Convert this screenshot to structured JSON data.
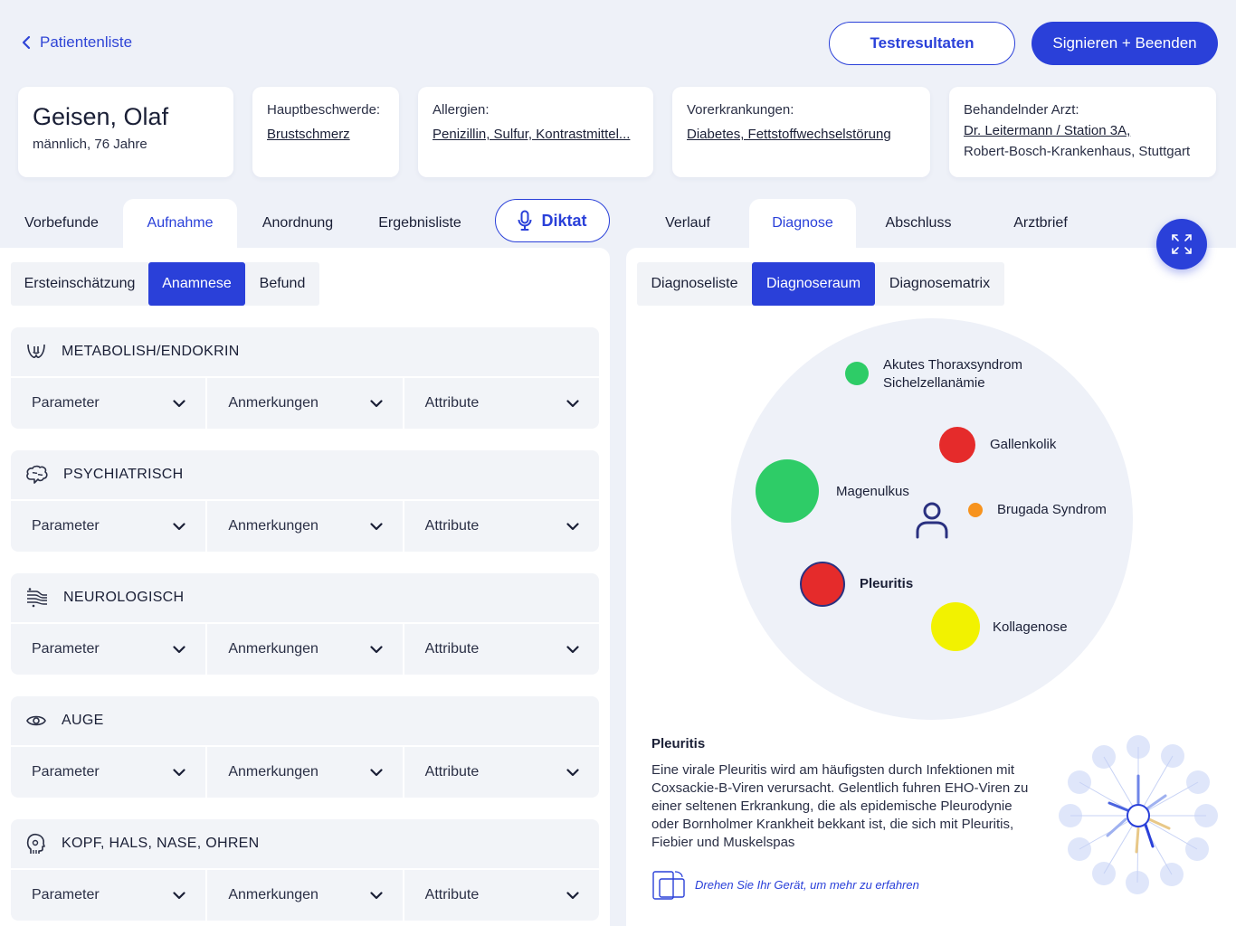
{
  "topbar": {
    "back_label": "Patientenliste",
    "test_results_label": "Testresultaten",
    "sign_label": "Signieren + Beenden"
  },
  "patient": {
    "name": "Geisen, Olaf",
    "info": "männlich, 76 Jahre"
  },
  "cards": {
    "complaint_label": "Hauptbeschwerde:",
    "complaint_value": "Brustschmerz",
    "allergies_label": "Allergien:",
    "allergies_value": "Penizillin, Sulfur, Kontrastmittel...",
    "history_label": "Vorerkrankungen:",
    "history_value": "Diabetes, Fettstoffwechselstörung",
    "doctor_label": "Behandelnder Arzt:",
    "doctor_value": "Dr. Leitermann / Station 3A,",
    "hospital": "Robert-Bosch-Krankenhaus, Stuttgart"
  },
  "tabs_left": [
    "Vorbefunde",
    "Aufnahme",
    "Anordnung",
    "Ergebnisliste"
  ],
  "diktat_label": "Diktat",
  "tabs_right": [
    "Verlauf",
    "Diagnose",
    "Abschluss",
    "Arztbrief"
  ],
  "subtabs_left": [
    "Ersteinschätzung",
    "Anamnese",
    "Befund"
  ],
  "subtabs_right": [
    "Diagnoseliste",
    "Diagnoseraum",
    "Diagnosematrix"
  ],
  "sections": [
    {
      "title": "METABOLISH/ENDOKRIN",
      "icon": "thyroid-icon"
    },
    {
      "title": "PSYCHIATRISCH",
      "icon": "brain-icon"
    },
    {
      "title": "NEUROLOGISCH",
      "icon": "nerves-icon"
    },
    {
      "title": "AUGE",
      "icon": "eye-icon"
    },
    {
      "title": "KOPF, HALS, NASE, OHREN",
      "icon": "head-icon"
    }
  ],
  "field_labels": {
    "parameter": "Parameter",
    "notes": "Anmerkungen",
    "attribute": "Attribute"
  },
  "diagnoses": {
    "thorax": "Akutes Thoraxsyndrom",
    "thorax2": "Sichelzellanämie",
    "gallen": "Gallenkolik",
    "magen": "Magenulkus",
    "brugada": "Brugada Syndrom",
    "pleuritis": "Pleuritis",
    "kollagen": "Kollagenose"
  },
  "detail": {
    "title": "Pleuritis",
    "text": "Eine virale Pleuritis wird am häufigsten durch Infektionen mit Coxsackie-B-Viren verursacht. Gelentlich fuhren EHO-Viren zu einer seltenen Erkrankung, die als epidemische Pleurodynie oder Bornholmer Krankheit bekkant ist, die sich mit Pleuritis, Fiebier und Muskelspas",
    "rotate_hint": "Drehen Sie Ihr Gerät, um mehr zu erfahren"
  },
  "colors": {
    "accent": "#2a40d9",
    "green": "#2ecc67",
    "red": "#e52b2b",
    "orange": "#f7931e",
    "yellow": "#f2f200"
  }
}
